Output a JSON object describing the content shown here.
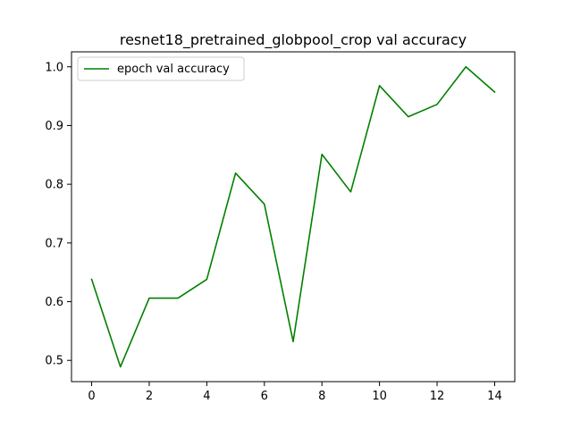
{
  "chart_data": {
    "type": "line",
    "title": "resnet18_pretrained_globpool_crop val accuracy",
    "xlabel": "",
    "ylabel": "",
    "x": [
      0,
      1,
      2,
      3,
      4,
      5,
      6,
      7,
      8,
      9,
      10,
      11,
      12,
      13,
      14
    ],
    "series": [
      {
        "name": "epoch val accuracy",
        "color": "#008000",
        "values": [
          0.638,
          0.489,
          0.606,
          0.606,
          0.638,
          0.819,
          0.766,
          0.532,
          0.851,
          0.787,
          0.968,
          0.915,
          0.936,
          1.0,
          0.957
        ]
      }
    ],
    "xlim": [
      -0.7,
      14.7
    ],
    "ylim": [
      0.4638,
      1.0255
    ],
    "xticks": [
      0,
      2,
      4,
      6,
      8,
      10,
      12,
      14
    ],
    "yticks": [
      0.5,
      0.6,
      0.7,
      0.8,
      0.9,
      1.0
    ],
    "xtick_labels": [
      "0",
      "2",
      "4",
      "6",
      "8",
      "10",
      "12",
      "14"
    ],
    "ytick_labels": [
      "0.5",
      "0.6",
      "0.7",
      "0.8",
      "0.9",
      "1.0"
    ],
    "grid": false,
    "legend_position": "top-left"
  }
}
